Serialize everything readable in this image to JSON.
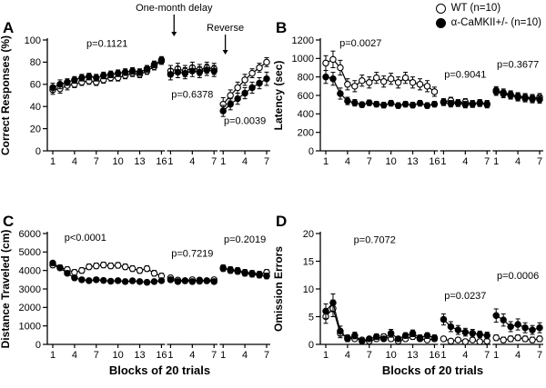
{
  "legend": {
    "items": [
      {
        "label": "WT (n=10)",
        "marker": "open-circle"
      },
      {
        "label": "α-CaMKII+/- (n=10)",
        "marker": "filled-circle"
      }
    ]
  },
  "colors": {
    "series": "#000000",
    "background": "#ffffff"
  },
  "chart_data": [
    {
      "label": "A",
      "type": "line",
      "ylabel": "Correct Responses (%)",
      "xlabel": null,
      "ylim": [
        0,
        100
      ],
      "yticks": [
        0,
        20,
        40,
        60,
        80,
        100
      ],
      "top_labels": [
        {
          "text": "One-month delay",
          "seg": 1,
          "fx": 0.08,
          "ty": 12,
          "ay2": 40
        },
        {
          "text": "Reverse",
          "seg": 2,
          "fx": 0.05,
          "ty": 34,
          "ay2": 60
        }
      ],
      "pvalues": [
        {
          "text": "p=0.1121",
          "seg": 0,
          "fx": 0.5,
          "y": 94
        },
        {
          "text": "p=0.6378",
          "seg": 1,
          "fx": 0.5,
          "y": 48
        },
        {
          "text": "p=0.0039",
          "seg": 2,
          "fx": 0.5,
          "y": 24
        }
      ],
      "segments": [
        {
          "xticks": [
            1,
            4,
            7,
            10,
            13,
            16
          ],
          "series": [
            {
              "name": "WT",
              "marker": "open",
              "values": [
                55,
                56,
                59,
                60,
                62,
                63,
                62,
                64,
                66,
                66,
                68,
                70,
                69,
                72,
                76,
                81
              ],
              "err": [
                4,
                4,
                4,
                3,
                3,
                3,
                3,
                3,
                3,
                3,
                3,
                3,
                3,
                3,
                3,
                3
              ]
            },
            {
              "name": "α-CaMKII+/-",
              "marker": "filled",
              "values": [
                57,
                60,
                62,
                64,
                66,
                67,
                66,
                68,
                69,
                70,
                71,
                72,
                71,
                74,
                78,
                82
              ],
              "err": [
                4,
                4,
                3,
                3,
                3,
                3,
                3,
                3,
                3,
                3,
                3,
                3,
                3,
                3,
                3,
                3
              ]
            }
          ]
        },
        {
          "xticks": [
            1,
            4,
            7
          ],
          "series": [
            {
              "name": "WT",
              "marker": "open",
              "values": [
                72,
                74,
                72,
                75,
                73,
                75,
                74
              ],
              "err": 5
            },
            {
              "name": "α-CaMKII+/-",
              "marker": "filled",
              "values": [
                69,
                71,
                70,
                72,
                71,
                73,
                72
              ],
              "err": 5
            }
          ]
        },
        {
          "xticks": [
            1,
            4,
            7
          ],
          "series": [
            {
              "name": "WT",
              "marker": "open",
              "values": [
                42,
                50,
                57,
                64,
                70,
                75,
                80
              ],
              "err": [
                6,
                5,
                5,
                5,
                4,
                4,
                4
              ]
            },
            {
              "name": "α-CaMKII+/-",
              "marker": "filled",
              "values": [
                36,
                42,
                47,
                52,
                57,
                61,
                65
              ],
              "err": [
                5,
                5,
                5,
                5,
                5,
                5,
                6
              ]
            }
          ]
        }
      ]
    },
    {
      "label": "B",
      "type": "line",
      "ylabel": "Latency (sec)",
      "xlabel": null,
      "ylim": [
        0,
        1200
      ],
      "yticks": [
        0,
        200,
        400,
        600,
        800,
        1000,
        1200
      ],
      "pvalues": [
        {
          "text": "p=0.0027",
          "seg": 0,
          "fx": 0.32,
          "y": 1130
        },
        {
          "text": "p=0.9041",
          "seg": 1,
          "fx": 0.5,
          "y": 790
        },
        {
          "text": "p=0.3677",
          "seg": 2,
          "fx": 0.5,
          "y": 900
        }
      ],
      "segments": [
        {
          "xticks": [
            1,
            4,
            7,
            10,
            13,
            16
          ],
          "series": [
            {
              "name": "WT",
              "marker": "open",
              "values": [
                950,
                990,
                900,
                720,
                700,
                760,
                740,
                790,
                750,
                780,
                740,
                790,
                740,
                720,
                700,
                640
              ],
              "err": [
                80,
                90,
                80,
                60,
                60,
                60,
                60,
                60,
                60,
                60,
                60,
                60,
                60,
                60,
                60,
                50
              ]
            },
            {
              "name": "α-CaMKII+/-",
              "marker": "filled",
              "values": [
                800,
                780,
                620,
                540,
                520,
                500,
                520,
                505,
                495,
                515,
                490,
                505,
                495,
                515,
                490,
                505
              ],
              "err": [
                70,
                70,
                60,
                40,
                35,
                30,
                30,
                30,
                30,
                30,
                30,
                30,
                30,
                30,
                30,
                30
              ]
            }
          ]
        },
        {
          "xticks": [
            1,
            4,
            7
          ],
          "series": [
            {
              "name": "WT",
              "marker": "open",
              "values": [
                530,
                545,
                515,
                530,
                505,
                520,
                510
              ],
              "err": 35
            },
            {
              "name": "α-CaMKII+/-",
              "marker": "filled",
              "values": [
                525,
                510,
                520,
                500,
                510,
                515,
                500
              ],
              "err": 35
            }
          ]
        },
        {
          "xticks": [
            1,
            4,
            7
          ],
          "series": [
            {
              "name": "WT",
              "marker": "open",
              "values": [
                640,
                615,
                600,
                580,
                570,
                560,
                580
              ],
              "err": 40
            },
            {
              "name": "α-CaMKII+/-",
              "marker": "filled",
              "values": [
                655,
                630,
                610,
                590,
                580,
                570,
                555
              ],
              "err": 40
            }
          ]
        }
      ]
    },
    {
      "label": "C",
      "type": "line",
      "ylabel": "Distance Traveled (cm)",
      "xlabel": "Blocks of 20 trials",
      "ylim": [
        0,
        6000
      ],
      "yticks": [
        0,
        1000,
        2000,
        3000,
        4000,
        5000,
        6000
      ],
      "pvalues": [
        {
          "text": "p<0.0001",
          "seg": 0,
          "fx": 0.3,
          "y": 5600
        },
        {
          "text": "p=0.7219",
          "seg": 1,
          "fx": 0.5,
          "y": 4750
        },
        {
          "text": "p=0.2019",
          "seg": 2,
          "fx": 0.5,
          "y": 5500
        }
      ],
      "segments": [
        {
          "xticks": [
            1,
            4,
            7,
            10,
            13,
            16
          ],
          "series": [
            {
              "name": "WT",
              "marker": "open",
              "values": [
                4300,
                4150,
                4050,
                3900,
                4000,
                4200,
                4250,
                4300,
                4250,
                4280,
                4200,
                4100,
                4000,
                4100,
                3850,
                3700
              ],
              "err": 150
            },
            {
              "name": "α-CaMKII+/-",
              "marker": "filled",
              "values": [
                4400,
                4150,
                3850,
                3600,
                3500,
                3450,
                3500,
                3460,
                3420,
                3450,
                3400,
                3440,
                3400,
                3360,
                3400,
                3450
              ],
              "err": 120
            }
          ]
        },
        {
          "xticks": [
            1,
            4,
            7
          ],
          "series": [
            {
              "name": "WT",
              "marker": "open",
              "values": [
                3600,
                3480,
                3450,
                3500,
                3420,
                3450,
                3500
              ],
              "err": 120
            },
            {
              "name": "α-CaMKII+/-",
              "marker": "filled",
              "values": [
                3500,
                3400,
                3440,
                3400,
                3480,
                3440,
                3400
              ],
              "err": 120
            }
          ]
        },
        {
          "xticks": [
            1,
            4,
            7
          ],
          "series": [
            {
              "name": "WT",
              "marker": "open",
              "values": [
                4100,
                4050,
                4000,
                3900,
                3850,
                3800,
                3900
              ],
              "err": 150
            },
            {
              "name": "α-CaMKII+/-",
              "marker": "filled",
              "values": [
                4150,
                4000,
                3950,
                3850,
                3800,
                3750,
                3700
              ],
              "err": 150
            }
          ]
        }
      ]
    },
    {
      "label": "D",
      "type": "line",
      "ylabel": "Omission Errors",
      "xlabel": "Blocks of 20 trials",
      "ylim": [
        0,
        20
      ],
      "yticks": [
        0,
        5,
        10,
        15,
        20
      ],
      "pvalues": [
        {
          "text": "p=0.7072",
          "seg": 0,
          "fx": 0.45,
          "y": 18.3
        },
        {
          "text": "p=0.0237",
          "seg": 1,
          "fx": 0.5,
          "y": 8.2
        },
        {
          "text": "p=0.0006",
          "seg": 2,
          "fx": 0.5,
          "y": 11.8
        }
      ],
      "segments": [
        {
          "xticks": [
            1,
            4,
            7,
            10,
            13,
            16
          ],
          "series": [
            {
              "name": "WT",
              "marker": "open",
              "values": [
                5.0,
                6.5,
                2.0,
                1.2,
                1.0,
                0.8,
                0.6,
                1.0,
                1.4,
                1.0,
                0.6,
                1.0,
                1.4,
                1.0,
                0.8,
                1.0
              ],
              "err": [
                1.2,
                1.5,
                0.8,
                0.5,
                0.4,
                0.4,
                0.3,
                0.4,
                0.5,
                0.4,
                0.3,
                0.4,
                0.5,
                0.4,
                0.4,
                0.4
              ]
            },
            {
              "name": "α-CaMKII+/-",
              "marker": "filled",
              "values": [
                6.0,
                7.5,
                2.4,
                1.0,
                1.6,
                0.6,
                1.0,
                1.4,
                1.0,
                2.0,
                1.0,
                1.6,
                2.0,
                1.2,
                1.6,
                1.2
              ],
              "err": [
                1.3,
                1.6,
                0.9,
                0.5,
                0.6,
                0.3,
                0.4,
                0.5,
                0.4,
                0.7,
                0.4,
                0.5,
                0.6,
                0.5,
                0.5,
                0.5
              ]
            }
          ]
        },
        {
          "xticks": [
            1,
            4,
            7
          ],
          "series": [
            {
              "name": "WT",
              "marker": "open",
              "values": [
                1.0,
                0.6,
                0.8,
                0.5,
                0.8,
                0.5,
                0.6
              ],
              "err": 0.4
            },
            {
              "name": "α-CaMKII+/-",
              "marker": "filled",
              "values": [
                4.5,
                3.2,
                2.6,
                2.2,
                2.0,
                1.8,
                1.6
              ],
              "err": [
                1.0,
                0.9,
                0.8,
                0.7,
                0.7,
                0.6,
                0.6
              ]
            }
          ]
        },
        {
          "xticks": [
            1,
            4,
            7
          ],
          "series": [
            {
              "name": "WT",
              "marker": "open",
              "values": [
                1.2,
                0.8,
                1.0,
                1.2,
                1.0,
                0.8,
                1.0
              ],
              "err": 0.5
            },
            {
              "name": "α-CaMKII+/-",
              "marker": "filled",
              "values": [
                5.2,
                4.4,
                3.2,
                3.6,
                3.0,
                2.6,
                3.0
              ],
              "err": [
                1.2,
                1.1,
                0.9,
                1.0,
                0.9,
                0.8,
                0.9
              ]
            }
          ]
        }
      ]
    }
  ]
}
